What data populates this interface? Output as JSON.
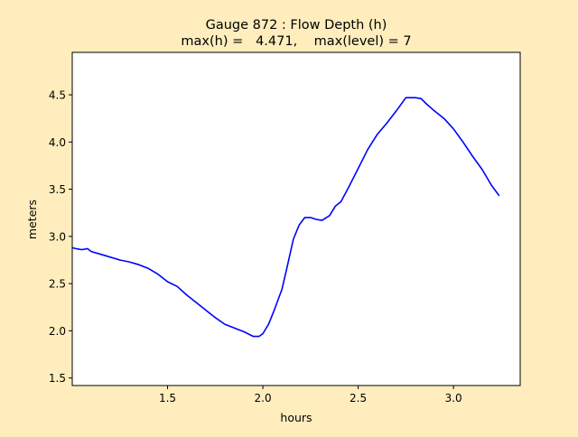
{
  "colors": {
    "figure_background": "#ffedbd",
    "axes_background": "#ffffff",
    "series": "#0000ff"
  },
  "chart_data": {
    "type": "line",
    "title": "Gauge 872 : Flow Depth (h)",
    "subtitle": "max(h) =   4.471,    max(level) = 7",
    "xlabel": "hours",
    "ylabel": "meters",
    "xlim": [
      1.0,
      3.35
    ],
    "ylim": [
      1.42,
      4.95
    ],
    "xticks": [
      {
        "value": 1.5,
        "label": "1.5"
      },
      {
        "value": 2.0,
        "label": "2.0"
      },
      {
        "value": 2.5,
        "label": "2.5"
      },
      {
        "value": 3.0,
        "label": "3.0"
      }
    ],
    "yticks": [
      {
        "value": 1.5,
        "label": "1.5"
      },
      {
        "value": 2.0,
        "label": "2.0"
      },
      {
        "value": 2.5,
        "label": "2.5"
      },
      {
        "value": 3.0,
        "label": "3.0"
      },
      {
        "value": 3.5,
        "label": "3.5"
      },
      {
        "value": 4.0,
        "label": "4.0"
      },
      {
        "value": 4.5,
        "label": "4.5"
      }
    ],
    "grid": false,
    "legend": "none",
    "series": [
      {
        "color": "#0000ff",
        "x": [
          1.0,
          1.02,
          1.05,
          1.08,
          1.1,
          1.15,
          1.2,
          1.25,
          1.3,
          1.35,
          1.4,
          1.45,
          1.5,
          1.55,
          1.6,
          1.65,
          1.7,
          1.75,
          1.8,
          1.85,
          1.9,
          1.95,
          1.98,
          2.0,
          2.03,
          2.06,
          2.1,
          2.13,
          2.16,
          2.19,
          2.22,
          2.25,
          2.28,
          2.31,
          2.35,
          2.38,
          2.41,
          2.45,
          2.5,
          2.55,
          2.6,
          2.65,
          2.7,
          2.75,
          2.8,
          2.83,
          2.86,
          2.9,
          2.95,
          3.0,
          3.05,
          3.1,
          3.15,
          3.2,
          3.24
        ],
        "y": [
          2.88,
          2.87,
          2.86,
          2.87,
          2.84,
          2.81,
          2.78,
          2.75,
          2.73,
          2.7,
          2.66,
          2.6,
          2.52,
          2.47,
          2.38,
          2.3,
          2.22,
          2.14,
          2.07,
          2.03,
          1.99,
          1.94,
          1.94,
          1.97,
          2.07,
          2.22,
          2.44,
          2.7,
          2.97,
          3.12,
          3.2,
          3.2,
          3.18,
          3.17,
          3.22,
          3.32,
          3.37,
          3.52,
          3.72,
          3.92,
          4.08,
          4.2,
          4.33,
          4.47,
          4.47,
          4.46,
          4.4,
          4.33,
          4.25,
          4.14,
          4.0,
          3.85,
          3.71,
          3.54,
          3.43
        ]
      }
    ]
  }
}
